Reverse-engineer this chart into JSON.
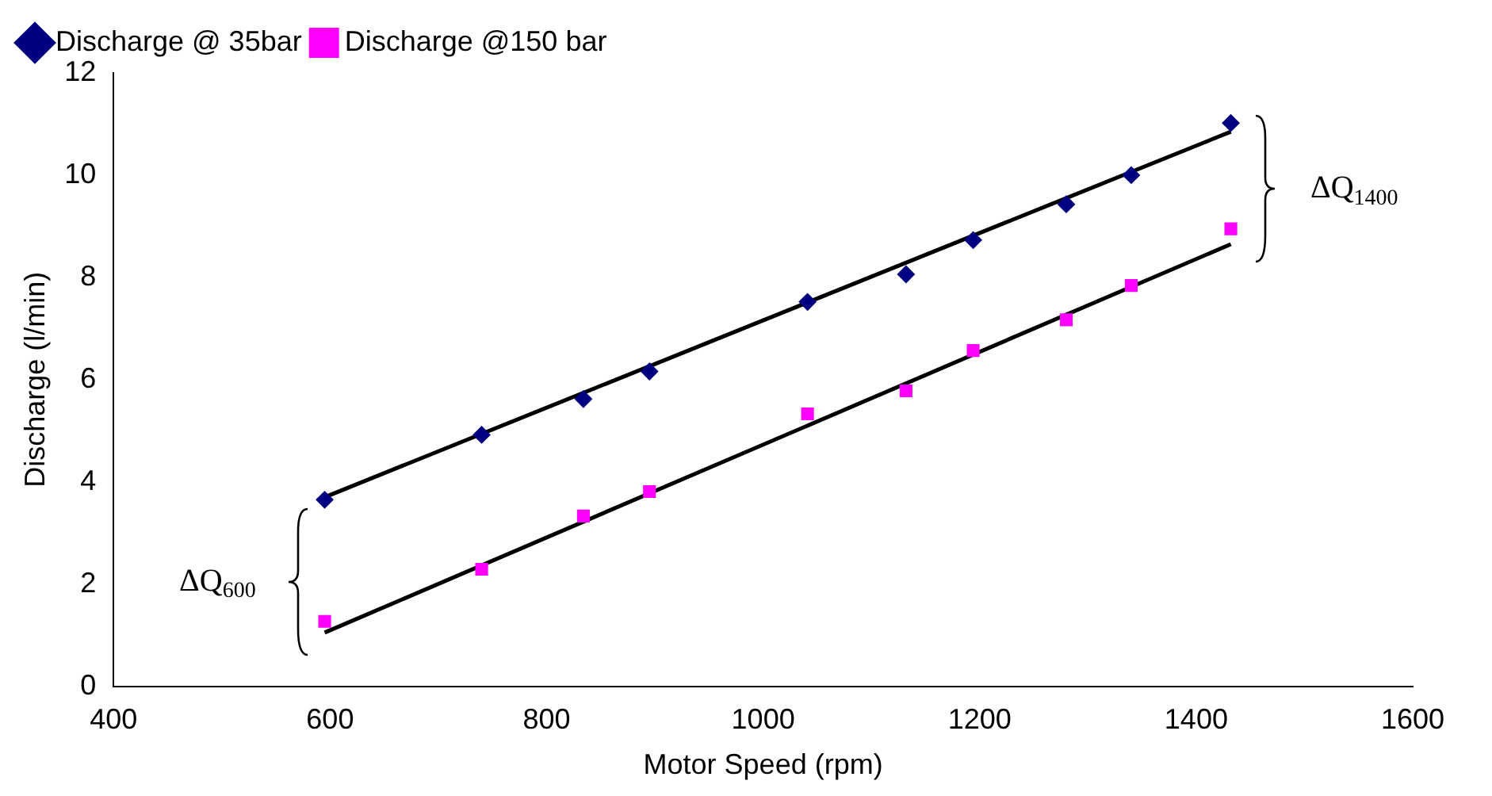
{
  "chart_data": {
    "type": "scatter",
    "xlabel": "Motor Speed (rpm)",
    "ylabel": "Discharge (l/min)",
    "xlim": [
      400,
      1600
    ],
    "xticks": [
      400,
      600,
      800,
      1000,
      1200,
      1400,
      1600
    ],
    "ylim": [
      0,
      12
    ],
    "yticks": [
      0,
      2,
      4,
      6,
      8,
      10,
      12
    ],
    "grid": false,
    "legend": "top",
    "series": [
      {
        "name": "Discharge @ 35bar",
        "color": "#000080",
        "marker": "diamond",
        "x": [
          595,
          740,
          834,
          895,
          1041,
          1132,
          1194,
          1280,
          1340,
          1432
        ],
        "values": [
          3.65,
          4.92,
          5.62,
          6.16,
          7.52,
          8.06,
          8.73,
          9.43,
          10.0,
          11.02
        ]
      },
      {
        "name": "Discharge @150 bar",
        "color": "#ff00ff",
        "marker": "square",
        "x": [
          595,
          740,
          834,
          895,
          1041,
          1132,
          1194,
          1280,
          1340,
          1432
        ],
        "values": [
          1.27,
          2.29,
          3.33,
          3.81,
          5.33,
          5.78,
          6.57,
          7.17,
          7.84,
          8.95
        ]
      },
      {
        "type": "line",
        "color": "#000000",
        "marker": "none",
        "x": [
          595,
          1432
        ],
        "values": [
          3.7,
          10.85
        ]
      },
      {
        "type": "line",
        "color": "#000000",
        "marker": "none",
        "x": [
          595,
          1432
        ],
        "values": [
          1.05,
          8.65
        ]
      }
    ],
    "annotations": [
      "ΔQ$_{1400}$",
      "ΔQ$_{600}$"
    ]
  }
}
